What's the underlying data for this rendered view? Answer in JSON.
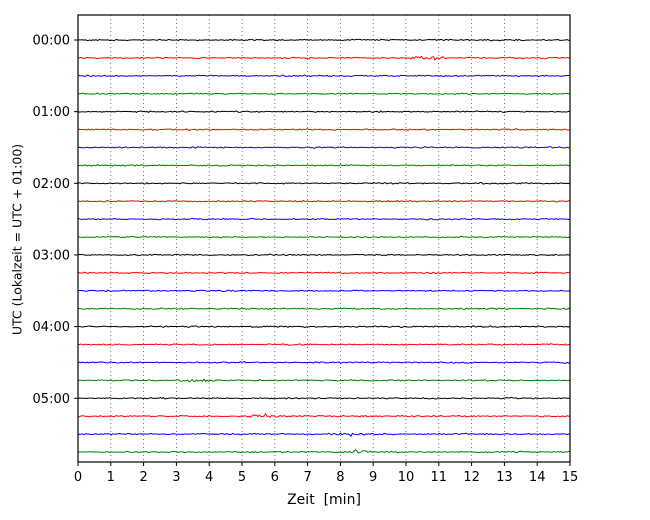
{
  "chart_data": {
    "type": "line",
    "title": "",
    "xlabel": "Zeit  [min]",
    "ylabel": "UTC (Lokalzeit = UTC + 01:00)",
    "xlim": [
      0,
      15
    ],
    "xticks": [
      0,
      1,
      2,
      3,
      4,
      5,
      6,
      7,
      8,
      9,
      10,
      11,
      12,
      13,
      14,
      15
    ],
    "hour_labels": [
      "00:00",
      "01:00",
      "02:00",
      "03:00",
      "04:00",
      "05:00"
    ],
    "traces_per_hour": 4,
    "minutes_per_trace": 15,
    "color_cycle": [
      "#000000",
      "#ff0000",
      "#0000ff",
      "#008000"
    ],
    "traces": [
      {
        "time": "00:00",
        "color": "#000000"
      },
      {
        "time": "00:15",
        "color": "#ff0000"
      },
      {
        "time": "00:30",
        "color": "#0000ff"
      },
      {
        "time": "00:45",
        "color": "#008000"
      },
      {
        "time": "01:00",
        "color": "#000000"
      },
      {
        "time": "01:15",
        "color": "#ff0000"
      },
      {
        "time": "01:30",
        "color": "#0000ff"
      },
      {
        "time": "01:45",
        "color": "#008000"
      },
      {
        "time": "02:00",
        "color": "#000000"
      },
      {
        "time": "02:15",
        "color": "#ff0000"
      },
      {
        "time": "02:30",
        "color": "#0000ff"
      },
      {
        "time": "02:45",
        "color": "#008000"
      },
      {
        "time": "03:00",
        "color": "#000000"
      },
      {
        "time": "03:15",
        "color": "#ff0000"
      },
      {
        "time": "03:30",
        "color": "#0000ff"
      },
      {
        "time": "03:45",
        "color": "#008000"
      },
      {
        "time": "04:00",
        "color": "#000000"
      },
      {
        "time": "04:15",
        "color": "#ff0000"
      },
      {
        "time": "04:30",
        "color": "#0000ff"
      },
      {
        "time": "04:45",
        "color": "#008000"
      },
      {
        "time": "05:00",
        "color": "#000000"
      },
      {
        "time": "05:15",
        "color": "#ff0000"
      },
      {
        "time": "05:30",
        "color": "#0000ff"
      },
      {
        "time": "05:45",
        "color": "#008000"
      }
    ],
    "noise_amplitude": 0.6,
    "events": [
      {
        "trace_time": "00:15",
        "minute": 10.7,
        "amplitude": 1.2,
        "width": 0.5
      },
      {
        "trace_time": "04:45",
        "minute": 3.7,
        "amplitude": 1.3,
        "width": 0.6
      },
      {
        "trace_time": "05:15",
        "minute": 5.6,
        "amplitude": 1.6,
        "width": 0.4
      },
      {
        "trace_time": "05:30",
        "minute": 8.3,
        "amplitude": 0.9,
        "width": 0.5
      },
      {
        "trace_time": "05:45",
        "minute": 8.6,
        "amplitude": 1.6,
        "width": 0.5
      }
    ],
    "grid": {
      "vertical_dotted_per_minute": true,
      "legend": "none"
    }
  }
}
